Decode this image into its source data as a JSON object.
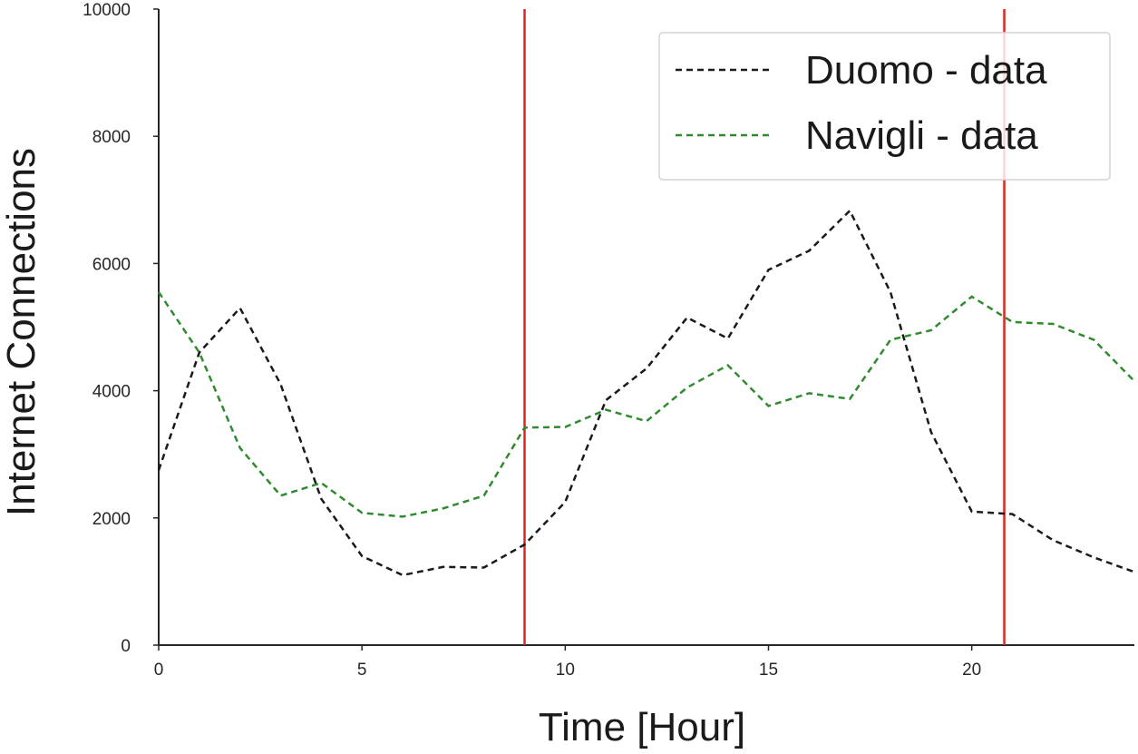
{
  "chart_data": {
    "type": "line",
    "xlabel": "Time [Hour]",
    "ylabel": "Internet Connections",
    "xlim": [
      0,
      24
    ],
    "ylim": [
      0,
      10000
    ],
    "x_ticks": [
      0,
      5,
      10,
      15,
      20
    ],
    "y_ticks": [
      0,
      2000,
      4000,
      6000,
      8000,
      10000
    ],
    "grid": false,
    "legend_position": "top-right",
    "x": [
      0,
      1,
      2,
      3,
      4,
      5,
      6,
      7,
      8,
      9,
      10,
      11,
      12,
      13,
      14,
      15,
      16,
      17,
      18,
      19,
      20,
      21,
      22,
      23,
      24
    ],
    "series": [
      {
        "name": "Duomo - data",
        "color": "#1a1a1a",
        "style": "dashed",
        "values": [
          2750,
          4600,
          5300,
          4100,
          2300,
          1400,
          1100,
          1230,
          1220,
          1580,
          2250,
          3850,
          4350,
          5150,
          4820,
          5900,
          6200,
          6830,
          5550,
          3350,
          2100,
          2060,
          1650,
          1380,
          1150
        ]
      },
      {
        "name": "Navigli - data",
        "color": "#2e8b2e",
        "style": "dashed",
        "values": [
          5550,
          4600,
          3100,
          2350,
          2550,
          2080,
          2020,
          2150,
          2350,
          3420,
          3430,
          3700,
          3520,
          4050,
          4400,
          3760,
          3960,
          3870,
          4800,
          4950,
          5480,
          5080,
          5050,
          4800,
          4150
        ]
      }
    ],
    "vertical_lines": [
      {
        "x": 9,
        "color": "#e02424"
      },
      {
        "x": 20.8,
        "color": "#e02424"
      }
    ]
  }
}
